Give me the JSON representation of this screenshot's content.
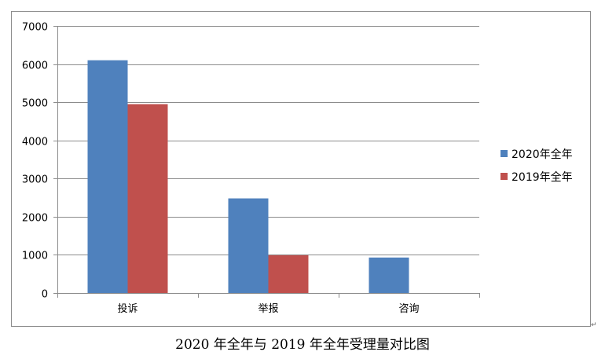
{
  "caption": "2020 年全年与 2019 年全年受理量对比图",
  "paragraph_mark": "↵",
  "colors": {
    "series_2020": "#4F81BD",
    "series_2019": "#C0504D",
    "grid": "#8C8C8C",
    "axis": "#8C8C8C"
  },
  "chart_data": {
    "type": "bar",
    "title": "",
    "xlabel": "",
    "ylabel": "",
    "categories": [
      "投诉",
      "举报",
      "咨询"
    ],
    "series": [
      {
        "name": "2020年全年",
        "values": [
          6100,
          2480,
          930
        ]
      },
      {
        "name": "2019年全年",
        "values": [
          4950,
          990,
          0
        ]
      }
    ],
    "ylim": [
      0,
      7000
    ],
    "yticks": [
      0,
      1000,
      2000,
      3000,
      4000,
      5000,
      6000,
      7000
    ],
    "grid": true,
    "legend_position": "right"
  }
}
